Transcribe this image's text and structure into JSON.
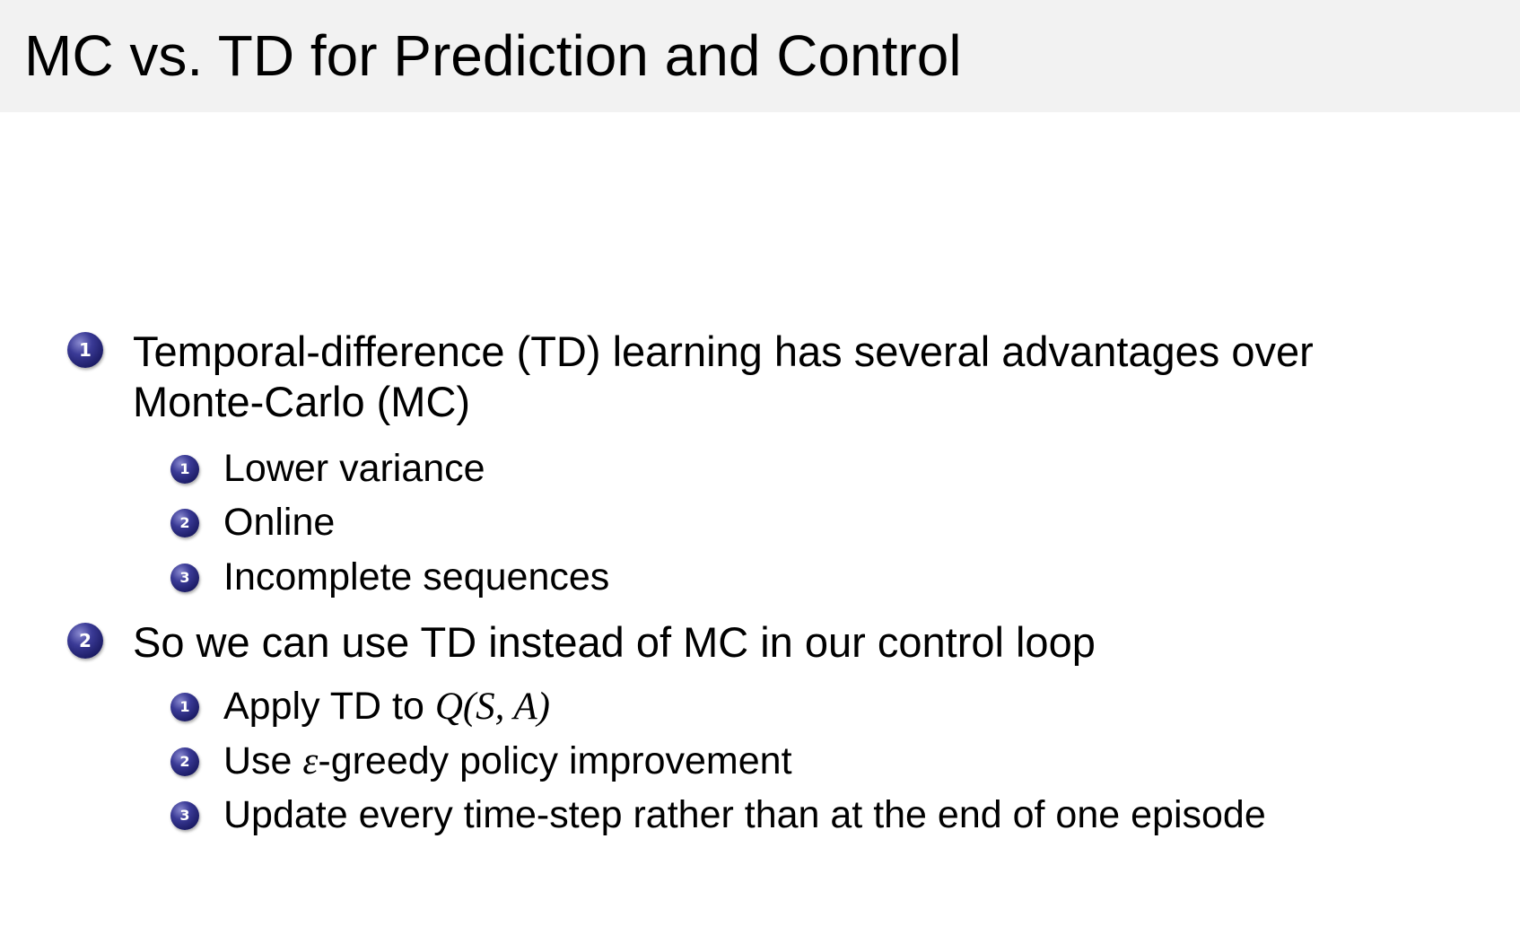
{
  "slide": {
    "title": "MC vs. TD for Prediction and Control",
    "bullet_color": "#2a2a80",
    "items": [
      {
        "number": "1",
        "line1": "Temporal-difference (TD) learning has several advantages over",
        "line2": "Monte-Carlo (MC)",
        "subitems": [
          {
            "number": "1",
            "text": "Lower variance"
          },
          {
            "number": "2",
            "text": "Online"
          },
          {
            "number": "3",
            "text": "Incomplete sequences"
          }
        ]
      },
      {
        "number": "2",
        "line1": "So we can use TD instead of MC in our control loop",
        "subitems": [
          {
            "number": "1",
            "text": "Apply TD to ",
            "math": "Q(S, A)"
          },
          {
            "number": "2",
            "text_before": "Use ",
            "math": "ε",
            "text_after": "-greedy policy improvement"
          },
          {
            "number": "3",
            "text": "Update every time-step rather than at the end of one episode"
          }
        ]
      }
    ]
  }
}
